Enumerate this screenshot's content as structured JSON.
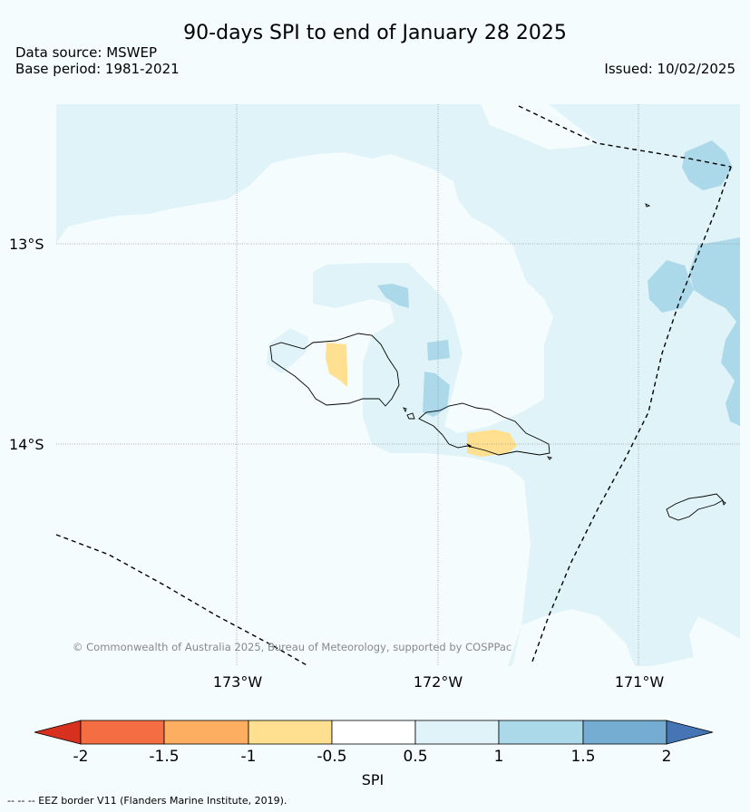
{
  "header": {
    "title": "90-days SPI to end of January 28 2025",
    "source": "Data source: MSWEP",
    "base": "Base period: 1981-2021",
    "issued": "Issued: 10/02/2025"
  },
  "map": {
    "lat_labels": [
      "13°S",
      "14°S"
    ],
    "lon_labels": [
      "173°W",
      "172°W",
      "171°W"
    ],
    "copyright": "© Commonwealth of Australia 2025, Bureau of Meteorology, supported by COSPPac"
  },
  "colorbar": {
    "label": "SPI",
    "ticks": [
      "-2",
      "-1.5",
      "-1",
      "-0.5",
      "0.5",
      "1",
      "1.5",
      "2"
    ],
    "colors": [
      "#d7301f",
      "#f46d43",
      "#fdae61",
      "#fee090",
      "#ffffff",
      "#e0f3f8",
      "#abd9e9",
      "#74add1",
      "#4575b4"
    ]
  },
  "footnote": "-- -- -- EEZ border V11 (Flanders Marine Institute, 2019)."
}
